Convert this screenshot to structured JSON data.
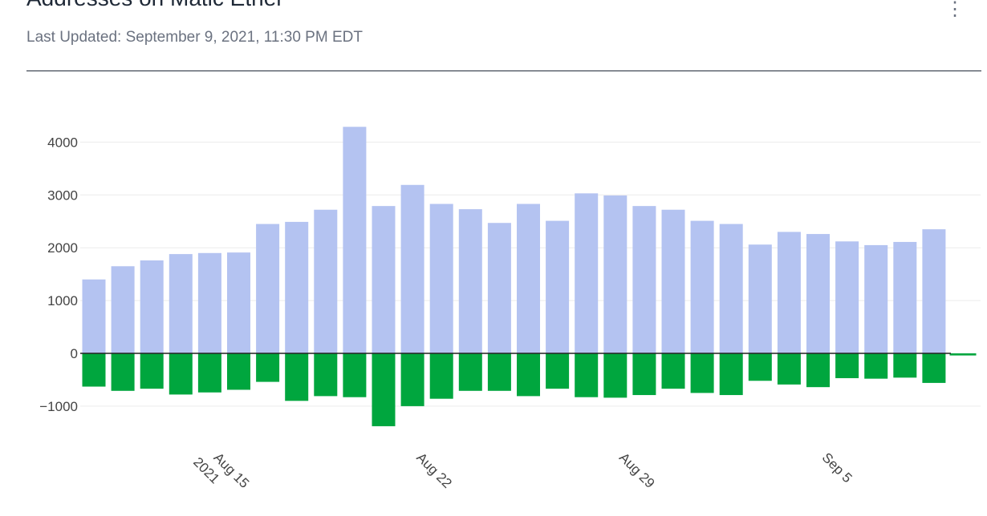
{
  "header": {
    "title": "Addresses on Matic Ether",
    "last_updated": "Last Updated: September 9, 2021, 11:30 PM EDT",
    "menu_icon": "more-vertical-icon"
  },
  "colors": {
    "positive": "#b4c3f1",
    "negative": "#00a63e",
    "zero_line": "#222222",
    "grid": "#ececec",
    "tick_text": "#444444"
  },
  "chart_data": {
    "type": "bar",
    "x": [
      "2021-08-11",
      "2021-08-12",
      "2021-08-13",
      "2021-08-14",
      "2021-08-15",
      "2021-08-16",
      "2021-08-17",
      "2021-08-18",
      "2021-08-19",
      "2021-08-20",
      "2021-08-21",
      "2021-08-22",
      "2021-08-23",
      "2021-08-24",
      "2021-08-25",
      "2021-08-26",
      "2021-08-27",
      "2021-08-28",
      "2021-08-29",
      "2021-08-30",
      "2021-08-31",
      "2021-09-01",
      "2021-09-02",
      "2021-09-03",
      "2021-09-04",
      "2021-09-05",
      "2021-09-06",
      "2021-09-07",
      "2021-09-08",
      "2021-09-09",
      "2021-09-10"
    ],
    "series": [
      {
        "values": [
          1400,
          1650,
          1760,
          1880,
          1900,
          1910,
          2450,
          2490,
          2720,
          4290,
          2790,
          3190,
          2830,
          2730,
          2470,
          2830,
          2510,
          3030,
          2990,
          2790,
          2720,
          2510,
          2450,
          2060,
          2300,
          2260,
          2120,
          2050,
          2110,
          2350,
          0
        ]
      },
      {
        "values": [
          -630,
          -710,
          -670,
          -780,
          -740,
          -690,
          -540,
          -900,
          -810,
          -830,
          -1380,
          -1000,
          -860,
          -710,
          -710,
          -810,
          -670,
          -830,
          -840,
          -790,
          -670,
          -750,
          -790,
          -520,
          -590,
          -640,
          -470,
          -480,
          -460,
          -560,
          -40
        ]
      }
    ],
    "ylim": [
      -1500,
      4400
    ],
    "yticks": [
      "4000",
      "3000",
      "2000",
      "1000",
      "0",
      "−1000"
    ],
    "ytick_values": [
      4000,
      3000,
      2000,
      1000,
      0,
      -1000
    ],
    "xticks": [
      {
        "date": "2021-08-15",
        "label": "Aug 15",
        "sublabel": "2021"
      },
      {
        "date": "2021-08-22",
        "label": "Aug 22",
        "sublabel": ""
      },
      {
        "date": "2021-08-29",
        "label": "Aug 29",
        "sublabel": ""
      },
      {
        "date": "2021-09-05",
        "label": "Sep 5",
        "sublabel": ""
      }
    ]
  }
}
